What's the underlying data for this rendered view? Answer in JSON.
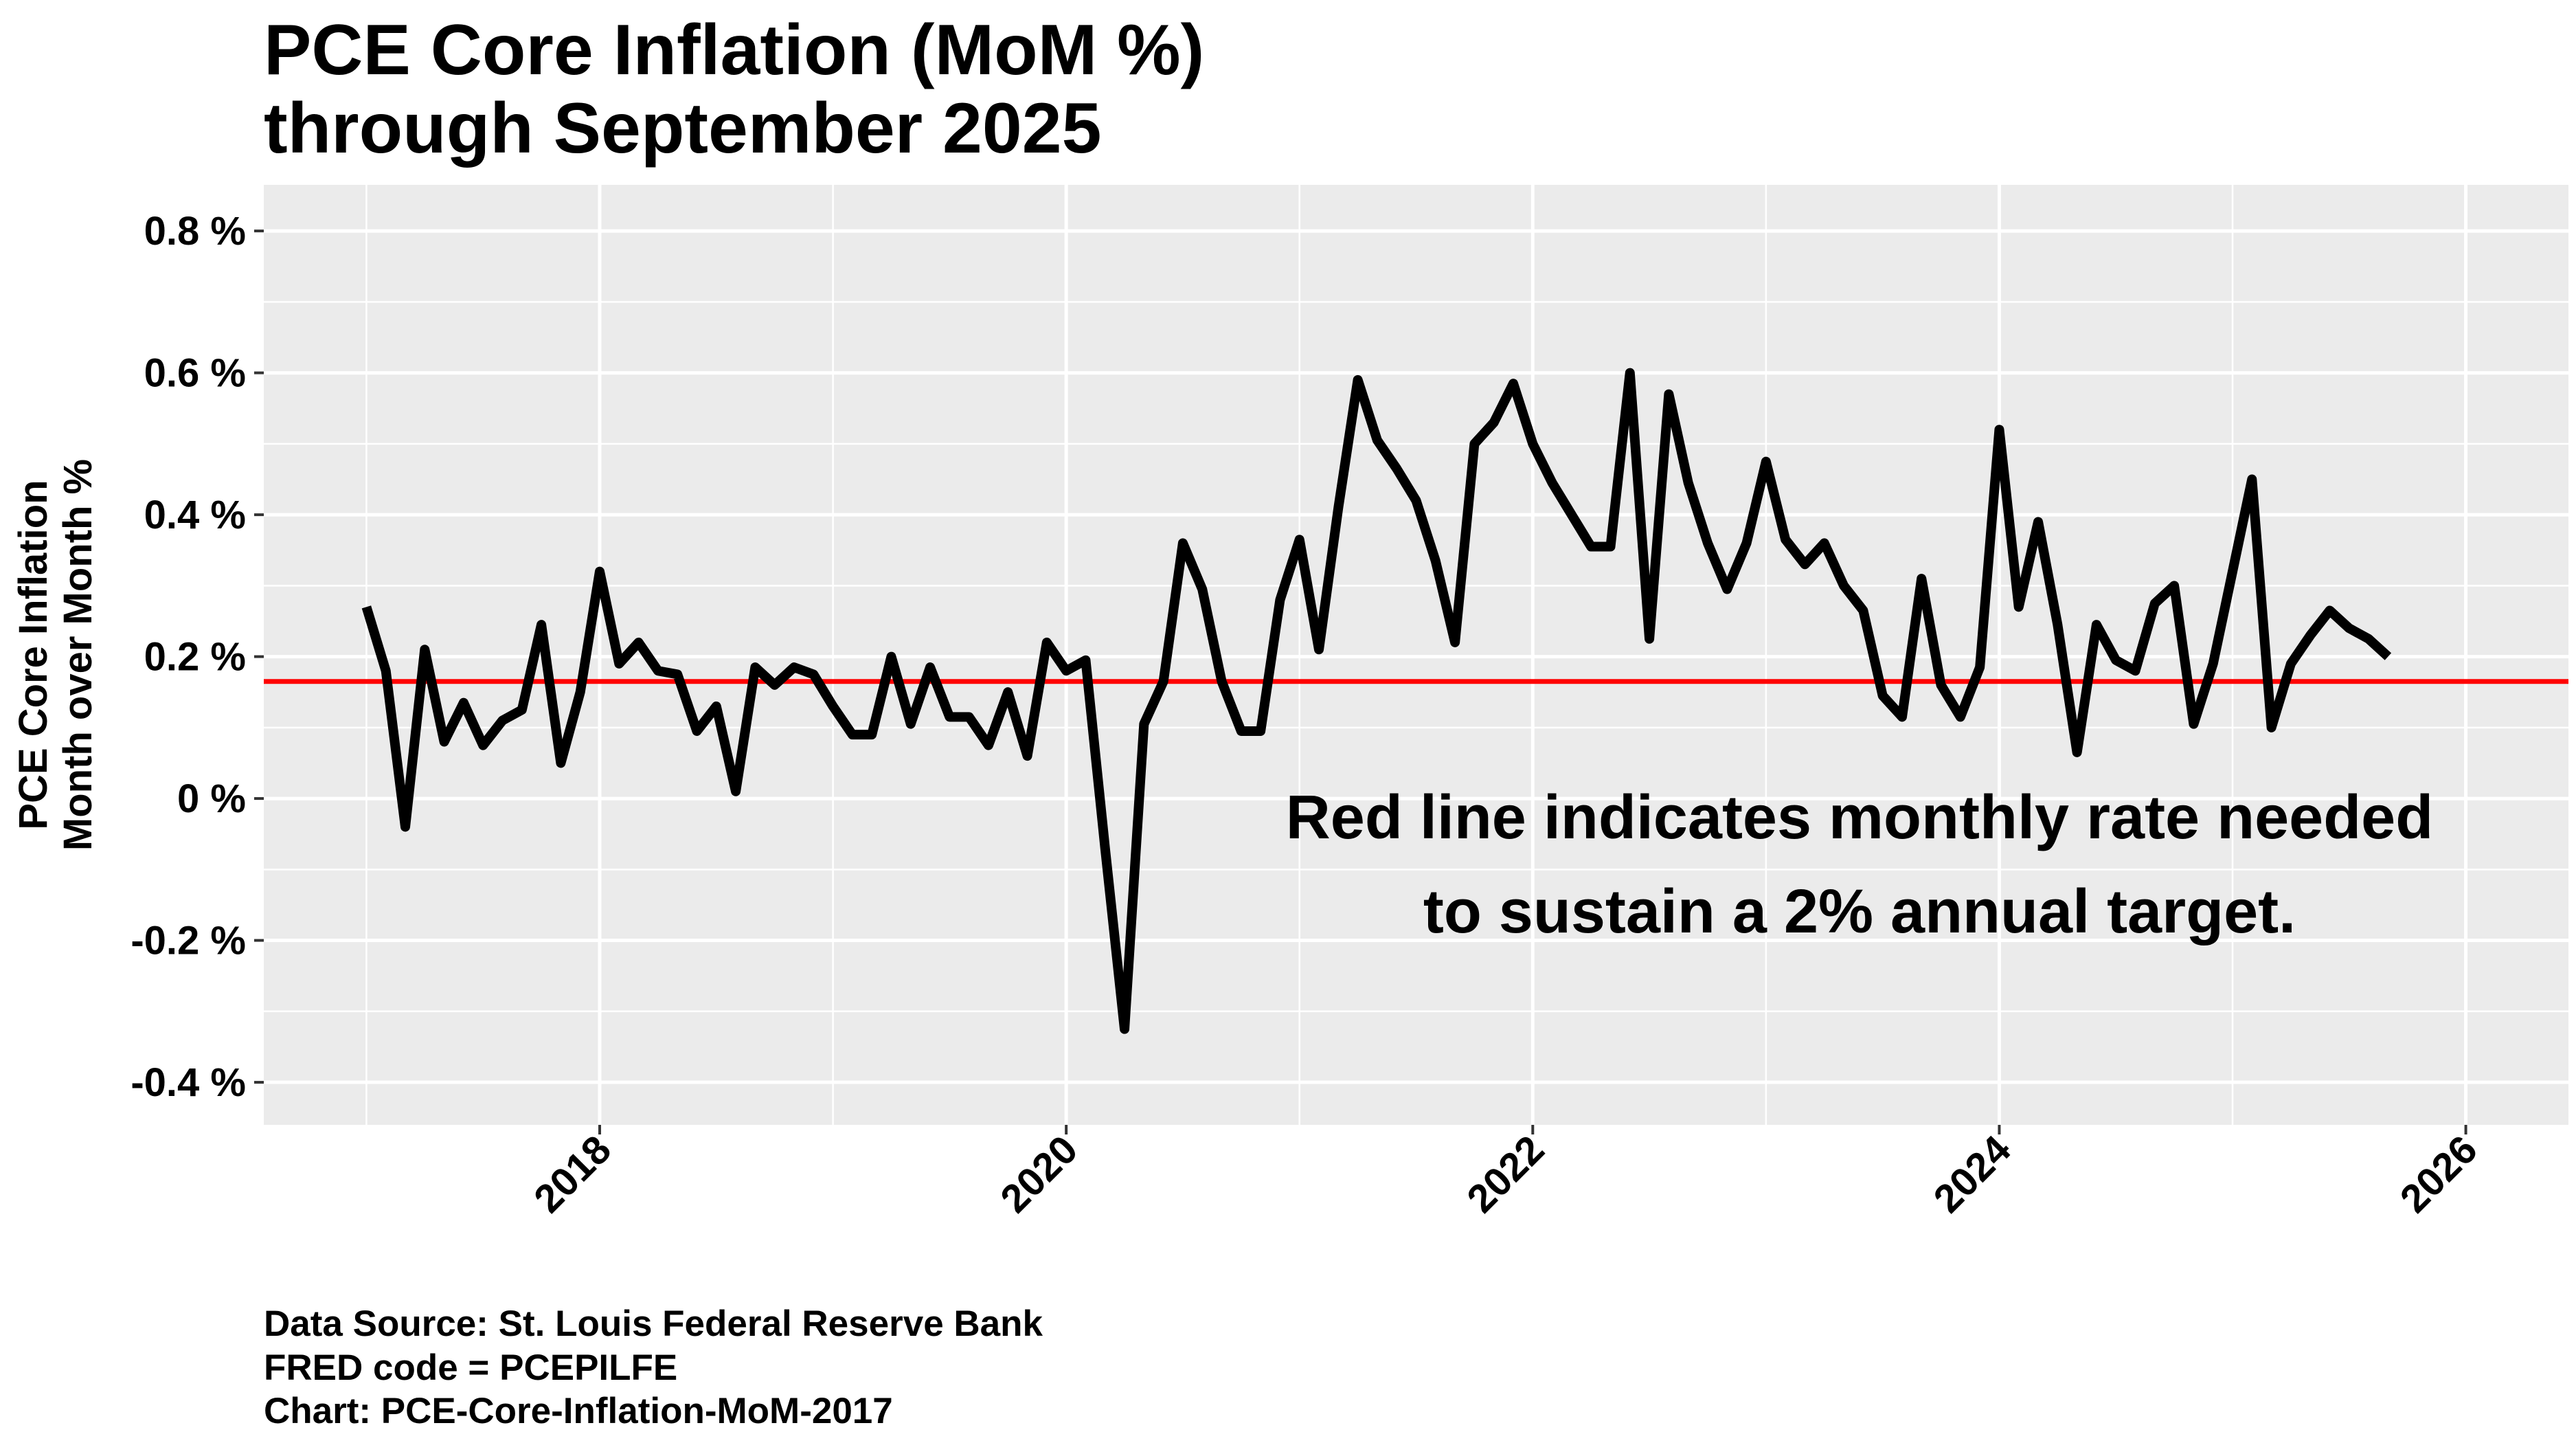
{
  "chart_data": {
    "type": "line",
    "title": [
      "PCE Core Inflation (MoM %)",
      "through September 2025"
    ],
    "ylabel": [
      "PCE Core Inflation",
      "Month over Month %"
    ],
    "xlabel": "",
    "ylim": [
      -0.46,
      0.865
    ],
    "xlim": [
      2016.56,
      2026.44
    ],
    "y_ticks": [
      -0.4,
      -0.2,
      0,
      0.2,
      0.4,
      0.6,
      0.8
    ],
    "y_tick_labels": [
      "-0.4 %",
      "-0.2 %",
      "0 %",
      "0.2 %",
      "0.4 %",
      "0.6 %",
      "0.8 %"
    ],
    "x_ticks": [
      2018,
      2020,
      2022,
      2024,
      2026
    ],
    "x_tick_labels": [
      "2018",
      "2020",
      "2022",
      "2024",
      "2026"
    ],
    "grid": true,
    "start": "2017-01",
    "end": "2025-09",
    "frequency": "monthly",
    "series": [
      {
        "color": "#000000",
        "values": [
          0.27,
          0.18,
          -0.04,
          0.21,
          0.08,
          0.135,
          0.075,
          0.11,
          0.125,
          0.245,
          0.05,
          0.15,
          0.32,
          0.19,
          0.22,
          0.18,
          0.175,
          0.095,
          0.13,
          0.01,
          0.185,
          0.16,
          0.185,
          0.175,
          0.13,
          0.09,
          0.09,
          0.2,
          0.105,
          0.185,
          0.115,
          0.115,
          0.075,
          0.15,
          0.06,
          0.22,
          0.18,
          0.195,
          -0.07,
          -0.325,
          0.105,
          0.165,
          0.36,
          0.295,
          0.165,
          0.095,
          0.095,
          0.28,
          0.365,
          0.21,
          0.41,
          0.59,
          0.505,
          0.465,
          0.42,
          0.335,
          0.22,
          0.5,
          0.53,
          0.585,
          0.5,
          0.445,
          0.4,
          0.355,
          0.355,
          0.6,
          0.225,
          0.57,
          0.445,
          0.36,
          0.295,
          0.36,
          0.475,
          0.365,
          0.33,
          0.36,
          0.3,
          0.265,
          0.145,
          0.115,
          0.31,
          0.16,
          0.115,
          0.185,
          0.52,
          0.27,
          0.39,
          0.245,
          0.065,
          0.245,
          0.195,
          0.18,
          0.275,
          0.3,
          0.105,
          0.19,
          0.32,
          0.45,
          0.1,
          0.19,
          0.23,
          0.265,
          0.24,
          0.225,
          0.2
        ]
      }
    ],
    "reference_line": {
      "value": 0.165,
      "color": "#ff0000"
    },
    "annotation": [
      "Red line indicates monthly rate needed",
      "to sustain a 2% annual target."
    ],
    "panel_background": "#ebebeb",
    "grid_color": "#ffffff"
  },
  "caption": [
    "Data Source:  St. Louis Federal Reserve Bank",
    "FRED code = PCEPILFE",
    "Chart: PCE-Core-Inflation-MoM-2017"
  ]
}
